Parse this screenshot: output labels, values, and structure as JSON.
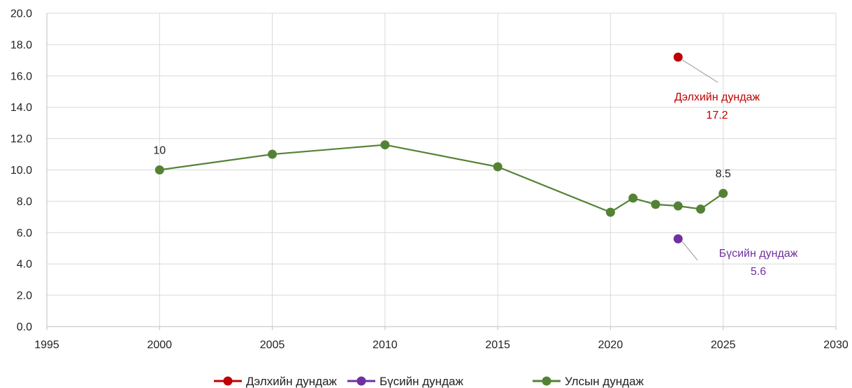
{
  "chart_data": {
    "type": "line",
    "title": "",
    "xlabel": "",
    "ylabel": "",
    "xlim": [
      1995,
      2030
    ],
    "ylim": [
      0,
      20
    ],
    "x_ticks": [
      "1995",
      "2000",
      "2005",
      "2010",
      "2015",
      "2020",
      "2025",
      "2030"
    ],
    "y_ticks": [
      "0.0",
      "2.0",
      "4.0",
      "6.0",
      "8.0",
      "10.0",
      "12.0",
      "14.0",
      "16.0",
      "18.0",
      "20.0"
    ],
    "grid": true,
    "legend_position": "bottom",
    "series": [
      {
        "name": "Дэлхийн дундаж",
        "color": "#c00000",
        "points": [
          {
            "x": 2023,
            "y": 17.2
          }
        ],
        "label_name": "Дэлхийн дундаж",
        "label_value": "17.2"
      },
      {
        "name": "Бүсийн дундаж",
        "color": "#7030a0",
        "points": [
          {
            "x": 2023,
            "y": 5.6
          }
        ],
        "label_name": "Бүсийн дундаж",
        "label_value": "5.6"
      },
      {
        "name": "Улсын дундаж",
        "color": "#548235",
        "points": [
          {
            "x": 2000,
            "y": 10.0
          },
          {
            "x": 2005,
            "y": 11.0
          },
          {
            "x": 2010,
            "y": 11.6
          },
          {
            "x": 2015,
            "y": 10.2
          },
          {
            "x": 2020,
            "y": 7.3
          },
          {
            "x": 2021,
            "y": 8.2
          },
          {
            "x": 2022,
            "y": 7.8
          },
          {
            "x": 2023,
            "y": 7.7
          },
          {
            "x": 2024,
            "y": 7.5
          },
          {
            "x": 2025,
            "y": 8.5
          }
        ],
        "data_labels": [
          {
            "x": 2000,
            "text": "10"
          },
          {
            "x": 2025,
            "text": "8.5"
          }
        ]
      }
    ]
  }
}
